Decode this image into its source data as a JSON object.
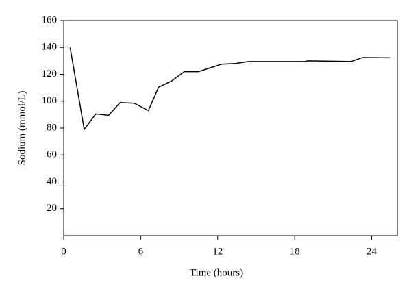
{
  "chart_data": {
    "type": "line",
    "xlabel": "Time (hours)",
    "ylabel": "Sodium (mmol/L)",
    "x": [
      0.5,
      1.6,
      2.5,
      3.5,
      4.4,
      5.5,
      6.6,
      7.4,
      8.4,
      9.4,
      10.5,
      12.3,
      13.4,
      14.4,
      18.8,
      19.0,
      22.4,
      23.3,
      25.5
    ],
    "series": [
      {
        "color": "#000000",
        "values": [
          140,
          79,
          90.5,
          89.5,
          99,
          98.5,
          93,
          110.5,
          115,
          122,
          122,
          127.5,
          128,
          129.5,
          129.5,
          130,
          129.5,
          132.5,
          132.3
        ]
      }
    ],
    "xlim": [
      0,
      26
    ],
    "xticks": [
      0,
      6,
      12,
      18,
      24
    ],
    "ylim": [
      0,
      160
    ],
    "yticks": [
      20,
      40,
      60,
      80,
      100,
      120,
      140,
      160
    ]
  }
}
